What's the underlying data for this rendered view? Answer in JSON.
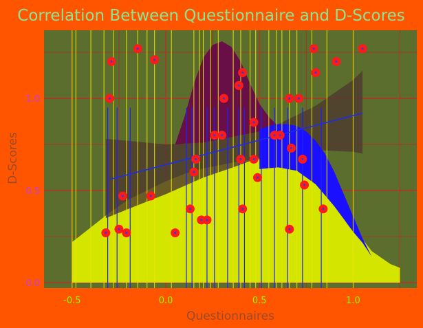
{
  "chart_data": {
    "type": "scatter",
    "title": "Correlation Between Questionnaire and D-Scores",
    "xlabel": "Questionnaires",
    "ylabel": "D-Scores",
    "xlim": [
      -0.65,
      1.34
    ],
    "ylim": [
      -0.03,
      1.37
    ],
    "x_ticks": [
      -0.5,
      0.0,
      0.5,
      1.0
    ],
    "x_tick_labels": [
      "-0.5",
      "0.0",
      "0.5",
      "1.0"
    ],
    "y_ticks": [
      0.0,
      0.5,
      1.0
    ],
    "y_tick_labels": [
      "0.0",
      "0.5",
      "1.0"
    ],
    "grid": true,
    "colors": {
      "background": "#ff5500",
      "panel": "#5b6e2d",
      "grid_major": "#c8281e",
      "grid_minor": "#b0301a",
      "points": "#ff1a1a",
      "point_center": "#3b3bd0",
      "regression_line": "#1e2ee6",
      "confidence_band": "#4e3a2e",
      "density_questionnaire": "#d4e600",
      "density_dscore": "#6a0a4a",
      "density_blue": "#1a10ff",
      "rug_yellow": "#e6e600",
      "rug_blue": "#2020ff"
    },
    "points": [
      {
        "x": -0.32,
        "y": 0.27
      },
      {
        "x": -0.3,
        "y": 1.0
      },
      {
        "x": -0.29,
        "y": 1.2
      },
      {
        "x": -0.25,
        "y": 0.29
      },
      {
        "x": -0.23,
        "y": 0.47
      },
      {
        "x": -0.21,
        "y": 0.27
      },
      {
        "x": -0.15,
        "y": 1.27
      },
      {
        "x": -0.08,
        "y": 0.47
      },
      {
        "x": -0.06,
        "y": 1.21
      },
      {
        "x": 0.05,
        "y": 0.27
      },
      {
        "x": 0.13,
        "y": 0.4
      },
      {
        "x": 0.15,
        "y": 0.6
      },
      {
        "x": 0.16,
        "y": 0.67
      },
      {
        "x": 0.19,
        "y": 0.34
      },
      {
        "x": 0.22,
        "y": 0.34
      },
      {
        "x": 0.26,
        "y": 0.8
      },
      {
        "x": 0.3,
        "y": 0.8
      },
      {
        "x": 0.31,
        "y": 1.0
      },
      {
        "x": 0.39,
        "y": 1.07
      },
      {
        "x": 0.4,
        "y": 0.67
      },
      {
        "x": 0.41,
        "y": 0.4
      },
      {
        "x": 0.41,
        "y": 1.14
      },
      {
        "x": 0.47,
        "y": 0.87
      },
      {
        "x": 0.47,
        "y": 0.67
      },
      {
        "x": 0.49,
        "y": 0.57
      },
      {
        "x": 0.58,
        "y": 0.8
      },
      {
        "x": 0.61,
        "y": 0.8
      },
      {
        "x": 0.66,
        "y": 0.29
      },
      {
        "x": 0.66,
        "y": 1.0
      },
      {
        "x": 0.67,
        "y": 0.73
      },
      {
        "x": 0.71,
        "y": 1.0
      },
      {
        "x": 0.73,
        "y": 0.67
      },
      {
        "x": 0.74,
        "y": 0.53
      },
      {
        "x": 0.79,
        "y": 1.27
      },
      {
        "x": 0.8,
        "y": 1.14
      },
      {
        "x": 0.84,
        "y": 0.4
      },
      {
        "x": 0.91,
        "y": 1.2
      },
      {
        "x": 1.05,
        "y": 1.27
      }
    ],
    "regression_line": {
      "x": [
        -0.3,
        1.05
      ],
      "y": [
        0.56,
        0.92
      ]
    },
    "confidence_band": {
      "x": [
        -0.32,
        -0.2,
        0.0,
        0.2,
        0.4,
        0.5,
        0.6,
        0.8,
        1.0,
        1.05
      ],
      "upper": [
        0.78,
        0.77,
        0.75,
        0.76,
        0.8,
        0.82,
        0.86,
        0.96,
        1.1,
        1.15
      ],
      "lower": [
        0.35,
        0.4,
        0.48,
        0.57,
        0.64,
        0.68,
        0.72,
        0.72,
        0.71,
        0.7
      ]
    },
    "density_questionnaire": {
      "x": [
        -0.5,
        -0.4,
        -0.3,
        -0.2,
        -0.1,
        0.0,
        0.1,
        0.2,
        0.3,
        0.4,
        0.5,
        0.6,
        0.7,
        0.8,
        0.9,
        1.0,
        1.1,
        1.2,
        1.25
      ],
      "y": [
        0.22,
        0.3,
        0.38,
        0.45,
        0.5,
        0.55,
        0.59,
        0.62,
        0.64,
        0.66,
        0.67,
        0.68,
        0.66,
        0.58,
        0.45,
        0.3,
        0.17,
        0.1,
        0.08
      ]
    },
    "density_dscore_upper": {
      "x": [
        0.05,
        0.1,
        0.15,
        0.2,
        0.25,
        0.3,
        0.35,
        0.4,
        0.45,
        0.5,
        0.55,
        0.6,
        0.65,
        0.7,
        0.75
      ],
      "y": [
        0.75,
        0.9,
        1.08,
        1.22,
        1.29,
        1.31,
        1.28,
        1.2,
        1.08,
        0.97,
        0.9,
        0.85,
        0.84,
        0.82,
        0.8
      ]
    },
    "density_blue_upper": {
      "x": [
        0.5,
        0.55,
        0.6,
        0.65,
        0.7,
        0.75,
        0.8,
        0.85,
        0.9,
        0.95,
        1.0,
        1.05,
        1.1,
        1.15
      ],
      "y": [
        0.83,
        0.85,
        0.86,
        0.86,
        0.85,
        0.82,
        0.77,
        0.7,
        0.6,
        0.48,
        0.36,
        0.24,
        0.14,
        0.08
      ]
    },
    "rug_yellow_x": [
      -0.5,
      -0.48,
      -0.4,
      -0.33,
      -0.28,
      -0.21,
      -0.15,
      -0.1,
      -0.06,
      0.03,
      0.15,
      0.18,
      0.2,
      0.24,
      0.28,
      0.36,
      0.4,
      0.45,
      0.48,
      0.55,
      0.59,
      0.62,
      0.66,
      0.7,
      0.78,
      0.86,
      1.0
    ],
    "rug_blue_x": [
      -0.31,
      -0.26,
      -0.19,
      0.11,
      0.14,
      0.22,
      0.26,
      0.33,
      0.39,
      0.42,
      0.51,
      0.58,
      0.65,
      0.73,
      0.83
    ]
  }
}
